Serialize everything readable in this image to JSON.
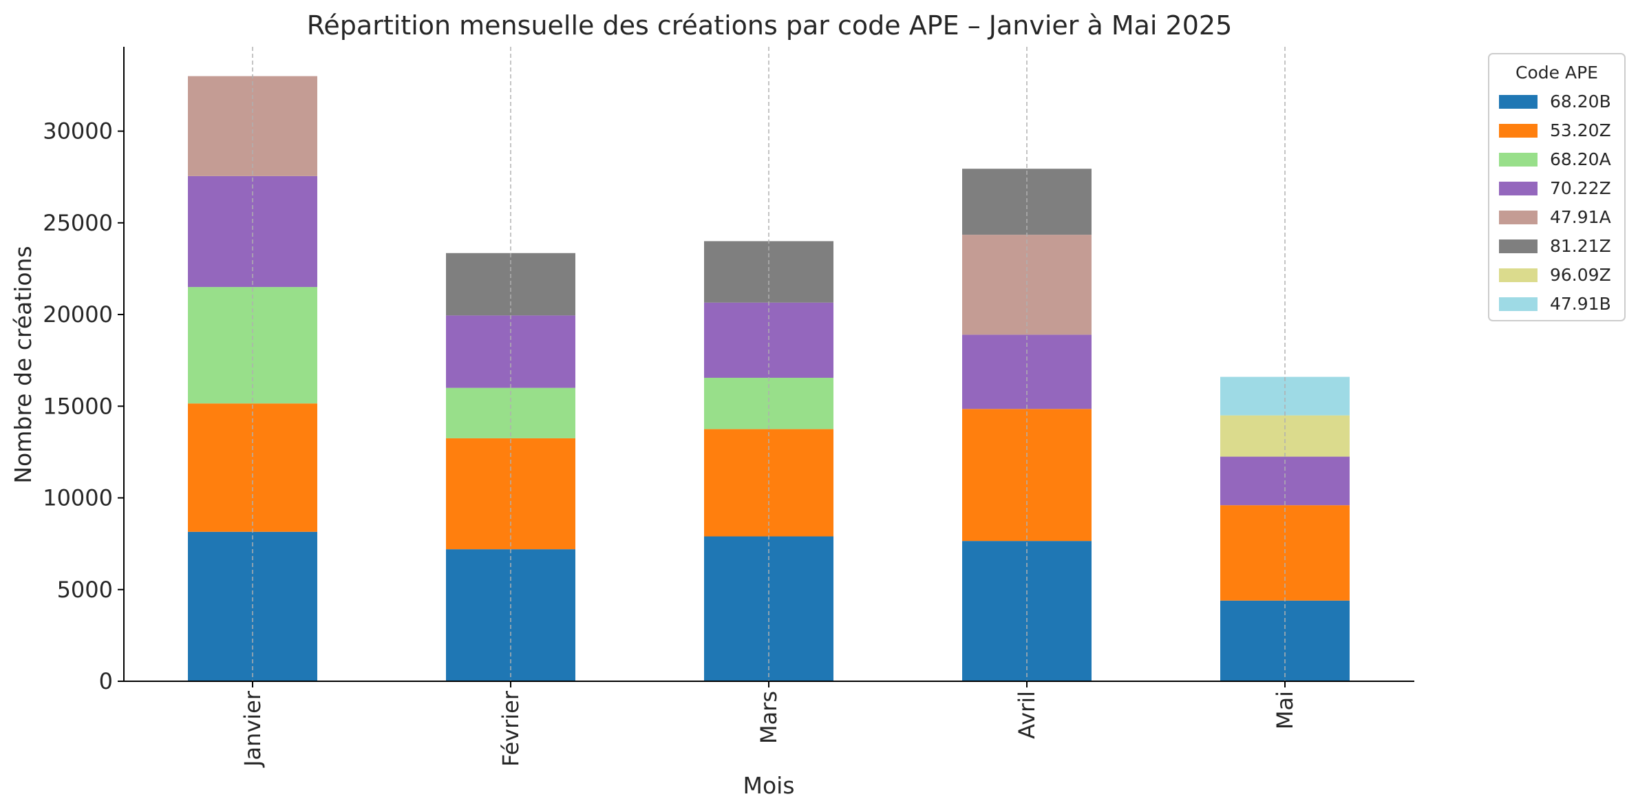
{
  "chart_data": {
    "type": "bar",
    "stacked": true,
    "title": "Répartition mensuelle des créations par code APE – Janvier à Mai 2025",
    "xlabel": "Mois",
    "ylabel": "Nombre de créations",
    "categories": [
      "Janvier",
      "Février",
      "Mars",
      "Avril",
      "Mai"
    ],
    "ylim": [
      0,
      34600
    ],
    "yticks": [
      0,
      5000,
      10000,
      15000,
      20000,
      25000,
      30000
    ],
    "grid": "vertical dashed",
    "legend": {
      "title": "Code APE",
      "placement": "outside top-right"
    },
    "series": [
      {
        "name": "68.20B",
        "color": "#1f77b4",
        "values": [
          8150,
          7200,
          7900,
          7650,
          4400
        ]
      },
      {
        "name": "53.20Z",
        "color": "#ff7f0e",
        "values": [
          7000,
          6050,
          5850,
          7200,
          5200
        ]
      },
      {
        "name": "68.20A",
        "color": "#98df8a",
        "values": [
          6350,
          2750,
          2800,
          0,
          0
        ]
      },
      {
        "name": "70.22Z",
        "color": "#9467bd",
        "values": [
          6050,
          3950,
          4100,
          4050,
          2650
        ]
      },
      {
        "name": "47.91A",
        "color": "#c49c94",
        "values": [
          5450,
          0,
          0,
          5450,
          0
        ]
      },
      {
        "name": "81.21Z",
        "color": "#7f7f7f",
        "values": [
          0,
          3400,
          3350,
          3600,
          0
        ]
      },
      {
        "name": "96.09Z",
        "color": "#dbdb8d",
        "values": [
          0,
          0,
          0,
          0,
          2250
        ]
      },
      {
        "name": "47.91B",
        "color": "#9edae5",
        "values": [
          0,
          0,
          0,
          0,
          2100
        ]
      }
    ]
  }
}
